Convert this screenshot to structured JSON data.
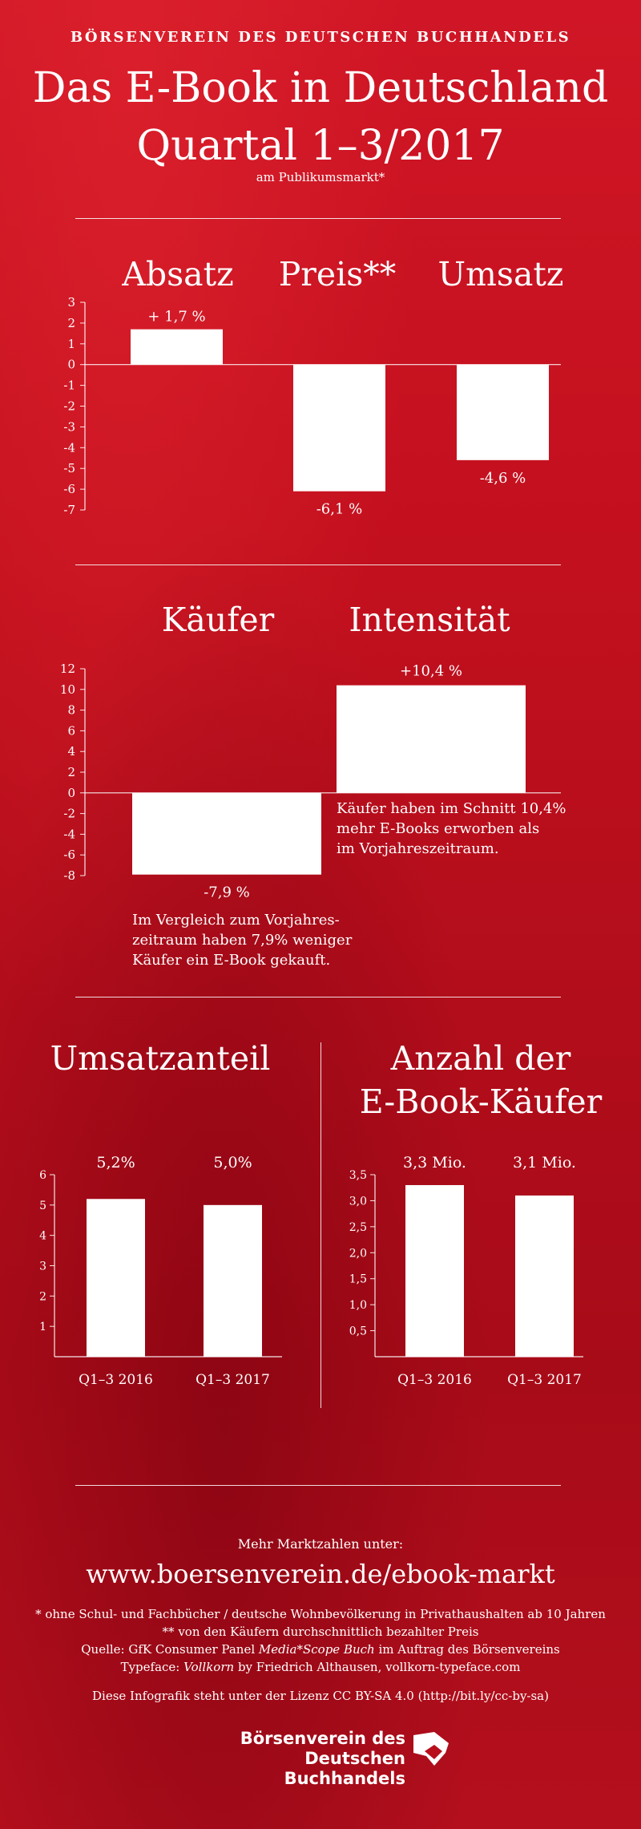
{
  "header": {
    "publisher": "BÖRSENVEREIN DES DEUTSCHEN BUCHHANDELS",
    "title_line1": "Das E-Book in Deutschland",
    "title_line2": "Quartal 1–3/2017",
    "subtitle": "am Publikumsmarkt*"
  },
  "chart_data": [
    {
      "type": "bar",
      "categories": [
        "Absatz",
        "Preis**",
        "Umsatz"
      ],
      "values": [
        1.7,
        -6.1,
        -4.6
      ],
      "value_labels": [
        "+ 1,7 %",
        "-6,1 %",
        "-4,6 %"
      ],
      "ylim": [
        -7,
        3
      ],
      "yticks": [
        "3",
        "2",
        "1",
        "0",
        "-1",
        "-2",
        "-3",
        "-4",
        "-5",
        "-6",
        "-7"
      ]
    },
    {
      "type": "bar",
      "categories": [
        "Käufer",
        "Intensität"
      ],
      "values": [
        -7.9,
        10.4
      ],
      "value_labels": [
        "-7,9 %",
        "+10,4 %"
      ],
      "ylim": [
        -8,
        12
      ],
      "yticks": [
        "12",
        "10",
        "8",
        "6",
        "4",
        "2",
        "0",
        "-2",
        "-4",
        "-6",
        "-8"
      ],
      "annotations": [
        {
          "for": "Käufer",
          "lines": [
            "Im Vergleich zum Vorjahres-",
            "zeitraum haben 7,9% weniger",
            "Käufer ein E-Book gekauft."
          ]
        },
        {
          "for": "Intensität",
          "lines": [
            "Käufer haben im Schnitt 10,4%",
            "mehr E-Books erworben als",
            "im Vorjahreszeitraum."
          ]
        }
      ]
    },
    {
      "type": "bar",
      "title": "Umsatzanteil",
      "categories": [
        "Q1–3 2016",
        "Q1–3 2017"
      ],
      "values": [
        5.2,
        5.0
      ],
      "value_labels": [
        "5,2%",
        "5,0%"
      ],
      "ylim": [
        0,
        6
      ],
      "yticks": [
        "6",
        "5",
        "4",
        "3",
        "2",
        "1"
      ]
    },
    {
      "type": "bar",
      "title_lines": [
        "Anzahl der",
        "E-Book-Käufer"
      ],
      "categories": [
        "Q1–3 2016",
        "Q1–3 2017"
      ],
      "values": [
        3.3,
        3.1
      ],
      "value_labels": [
        "3,3 Mio.",
        "3,1 Mio."
      ],
      "ylim": [
        0,
        3.5
      ],
      "yticks": [
        "3,5",
        "3,0",
        "2,5",
        "2,0",
        "1,5",
        "1,0",
        "0,5"
      ]
    }
  ],
  "footer": {
    "more_label": "Mehr Marktzahlen unter:",
    "url": "www.boersenverein.de/ebook-markt",
    "footnote1": "* ohne Schul- und Fachbücher / deutsche Wohnbevölkerung in Privathaushalten ab 10 Jahren",
    "footnote2": "** von den Käufern durchschnittlich bezahlter Preis",
    "source_prefix": "Quelle: GfK Consumer Panel ",
    "source_italic": "Media*Scope Buch",
    "source_suffix": " im Auftrag des Börsenvereins",
    "typeface_prefix": "Typeface: ",
    "typeface_italic": "Vollkorn",
    "typeface_suffix": " by Friedrich Althausen, vollkorn-typeface.com",
    "license": "Diese Infografik steht unter der Lizenz CC BY-SA 4.0 (http://bit.ly/cc-by-sa)",
    "logo_line1": "Börsenverein des",
    "logo_line2": "Deutschen Buchhandels"
  }
}
